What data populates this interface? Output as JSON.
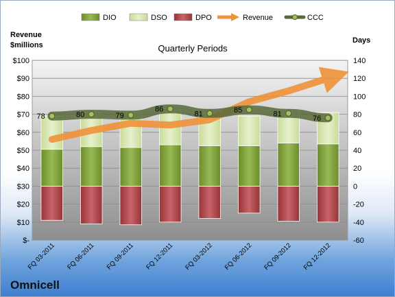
{
  "company": "Omnicell",
  "chart_data": {
    "type": "bar",
    "title": "Quarterly Periods",
    "left_axis_label": [
      "Revenue",
      "$millions"
    ],
    "right_axis_label": "Days",
    "categories": [
      "FQ 03-2011",
      "FQ 06-2011",
      "FQ 09-2011",
      "FQ 12-2011",
      "FQ 03-2012",
      "FQ 06-2012",
      "FQ 09-2012",
      "FQ 12-2012"
    ],
    "left_ylim": [
      0,
      100
    ],
    "left_ticks": [
      "$-",
      "$10",
      "$20",
      "$30",
      "$40",
      "$50",
      "$60",
      "$70",
      "$80",
      "$90",
      "$100"
    ],
    "right_ylim": [
      -60,
      140
    ],
    "right_ticks": [
      "-60",
      "-40",
      "-20",
      "0",
      "20",
      "40",
      "60",
      "80",
      "100",
      "120",
      "140"
    ],
    "legend_position": "top",
    "series": [
      {
        "name": "DIO",
        "axis": "days",
        "values": [
          41,
          44,
          43,
          46,
          45,
          45,
          48,
          47
        ],
        "color": "#7f9f3a"
      },
      {
        "name": "DSO",
        "axis": "days",
        "values": [
          37,
          38,
          39,
          38,
          36,
          33,
          36,
          35
        ],
        "color": "#d7e6b0"
      },
      {
        "name": "DPO",
        "axis": "days",
        "values": [
          -38,
          -42,
          -43,
          -40,
          -36,
          -30,
          -39,
          -40
        ],
        "color": "#b0474b"
      },
      {
        "name": "Revenue",
        "axis": "revenue",
        "values": [
          56,
          61,
          65,
          64,
          67,
          77,
          83,
          90
        ],
        "color": "#f0923a"
      },
      {
        "name": "CCC",
        "axis": "days",
        "values": [
          78,
          80,
          79,
          86,
          81,
          85,
          81,
          76
        ],
        "color": "#57683a"
      }
    ],
    "data_labels": [
      "78",
      "80",
      "79",
      "86",
      "81",
      "85",
      "81",
      "76"
    ]
  }
}
